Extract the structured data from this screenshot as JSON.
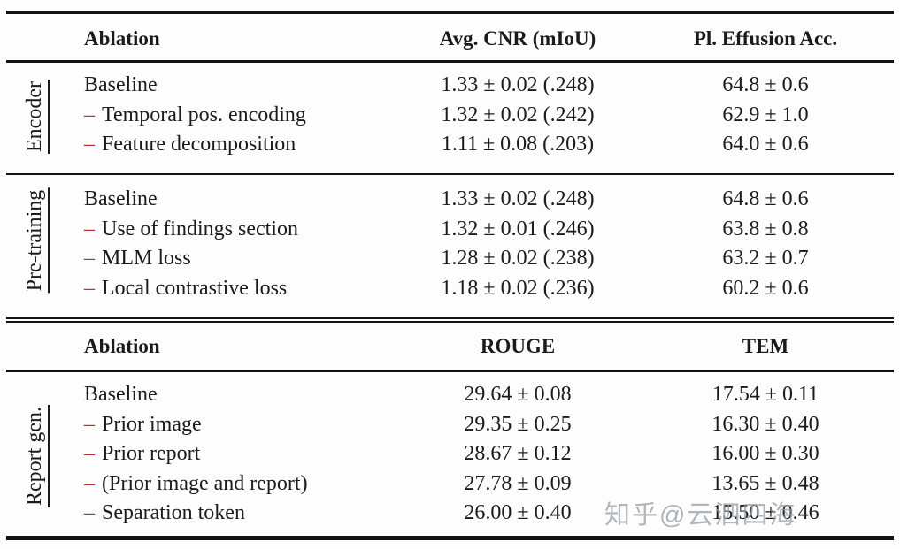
{
  "colors": {
    "text": "#1b1b1b",
    "minus_marker": "#a93732",
    "rule": "#131313",
    "watermark": "#969ca3"
  },
  "watermark": {
    "text": "知乎@云泗四海"
  },
  "table1": {
    "headers": {
      "ablation": "Ablation",
      "col2": "Avg. CNR (mIoU)",
      "col3": "Pl. Effusion Acc."
    },
    "sections": [
      {
        "group": "Encoder",
        "rows": [
          {
            "marker": "",
            "label": "Baseline",
            "col2": "1.33 ± 0.02 (.248)",
            "col3": "64.8 ± 0.6"
          },
          {
            "marker": "–",
            "label": "Temporal pos. encoding",
            "col2": "1.32 ± 0.02 (.242)",
            "col3": "62.9 ± 1.0"
          },
          {
            "marker": "–",
            "label": "Feature decomposition",
            "col2": "1.11 ± 0.08 (.203)",
            "col3": "64.0 ± 0.6"
          }
        ]
      },
      {
        "group": "Pre-training",
        "rows": [
          {
            "marker": "",
            "label": "Baseline",
            "col2": "1.33 ± 0.02 (.248)",
            "col3": "64.8 ± 0.6"
          },
          {
            "marker": "–",
            "label": "Use of findings section",
            "col2": "1.32 ± 0.01 (.246)",
            "col3": "63.8 ± 0.8"
          },
          {
            "marker": "–",
            "label": "MLM loss",
            "col2": "1.28 ± 0.02 (.238)",
            "col3": "63.2 ± 0.7"
          },
          {
            "marker": "–",
            "label": "Local contrastive loss",
            "col2": "1.18 ± 0.02 (.236)",
            "col3": "60.2 ± 0.6"
          }
        ]
      }
    ]
  },
  "table2": {
    "headers": {
      "ablation": "Ablation",
      "col2": "ROUGE",
      "col3": "TEM"
    },
    "sections": [
      {
        "group": "Report gen.",
        "rows": [
          {
            "marker": "",
            "label": "Baseline",
            "col2": "29.64 ± 0.08",
            "col3": "17.54 ± 0.11"
          },
          {
            "marker": "–",
            "label": "Prior image",
            "col2": "29.35 ± 0.25",
            "col3": "16.30 ± 0.40"
          },
          {
            "marker": "–",
            "label": "Prior report",
            "col2": "28.67 ± 0.12",
            "col3": "16.00 ± 0.30"
          },
          {
            "marker": "–",
            "label": "(Prior image and report)",
            "col2": "27.78 ± 0.09",
            "col3": "13.65 ± 0.48"
          },
          {
            "marker": "–",
            "label": "Separation token",
            "col2": "26.00 ± 0.40",
            "col3": "15.50 ± 0.46"
          }
        ]
      }
    ]
  }
}
